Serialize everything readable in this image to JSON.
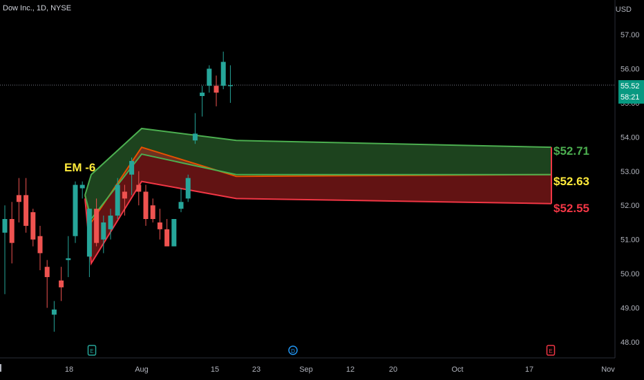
{
  "header": {
    "symbol": "Dow Inc., 1D, NYSE",
    "currency": "USD"
  },
  "last_price": {
    "price": "55.52",
    "countdown": "58:21",
    "color": "#089981"
  },
  "colors": {
    "up": "#26a69a",
    "down": "#ef5350",
    "upper_band": "#4caf50",
    "lower_band": "#f23645",
    "mid_band": "#e65100",
    "label_mid": "#ffeb3b"
  },
  "chart_data": {
    "type": "candlestick",
    "y_axis": {
      "ticks": [
        "57.00",
        "56.00",
        "55.00",
        "54.00",
        "53.00",
        "52.00",
        "51.00",
        "50.00",
        "49.00",
        "48.00"
      ],
      "range": [
        47.75,
        57.95
      ]
    },
    "x_axis": {
      "ticks": [
        "18",
        "Aug",
        "15",
        "23",
        "Sep",
        "12",
        "20",
        "Oct",
        "17",
        "Nov"
      ]
    },
    "candles": [
      {
        "o": 51.2,
        "h": 52.0,
        "l": 49.4,
        "c": 51.6
      },
      {
        "o": 51.6,
        "h": 52.1,
        "l": 50.3,
        "c": 50.9
      },
      {
        "o": 52.3,
        "h": 52.8,
        "l": 51.5,
        "c": 52.1
      },
      {
        "o": 52.3,
        "h": 52.8,
        "l": 51.2,
        "c": 51.4
      },
      {
        "o": 51.8,
        "h": 51.9,
        "l": 50.8,
        "c": 51.0
      },
      {
        "o": 51.1,
        "h": 51.4,
        "l": 50.1,
        "c": 50.6
      },
      {
        "o": 50.2,
        "h": 50.4,
        "l": 49.0,
        "c": 49.9
      },
      {
        "o": 48.8,
        "h": 49.2,
        "l": 48.3,
        "c": 48.95
      },
      {
        "o": 49.8,
        "h": 50.2,
        "l": 49.2,
        "c": 49.6
      },
      {
        "o": 50.4,
        "h": 51.1,
        "l": 49.9,
        "c": 50.45
      },
      {
        "o": 51.1,
        "h": 52.7,
        "l": 50.9,
        "c": 52.6
      },
      {
        "o": 52.5,
        "h": 52.7,
        "l": 52.2,
        "c": 52.6
      },
      {
        "o": 50.5,
        "h": 51.9,
        "l": 49.9,
        "c": 51.9
      },
      {
        "o": 51.9,
        "h": 52.2,
        "l": 50.8,
        "c": 50.9
      },
      {
        "o": 51.0,
        "h": 51.7,
        "l": 50.6,
        "c": 51.5
      },
      {
        "o": 51.3,
        "h": 51.9,
        "l": 51.0,
        "c": 51.7
      },
      {
        "o": 51.7,
        "h": 52.8,
        "l": 51.6,
        "c": 52.6
      },
      {
        "o": 52.4,
        "h": 52.6,
        "l": 51.7,
        "c": 52.2
      },
      {
        "o": 52.9,
        "h": 53.4,
        "l": 52.3,
        "c": 53.3
      },
      {
        "o": 52.6,
        "h": 53.0,
        "l": 52.0,
        "c": 52.4
      },
      {
        "o": 52.4,
        "h": 52.6,
        "l": 51.4,
        "c": 51.6
      },
      {
        "o": 52.0,
        "h": 52.2,
        "l": 51.5,
        "c": 51.6
      },
      {
        "o": 51.5,
        "h": 51.9,
        "l": 51.0,
        "c": 51.3
      },
      {
        "o": 51.3,
        "h": 51.6,
        "l": 50.8,
        "c": 50.8
      },
      {
        "o": 50.8,
        "h": 51.6,
        "l": 50.8,
        "c": 51.6
      },
      {
        "o": 51.9,
        "h": 52.5,
        "l": 51.8,
        "c": 52.1
      },
      {
        "o": 52.2,
        "h": 52.9,
        "l": 52.1,
        "c": 52.8
      },
      {
        "o": 53.9,
        "h": 54.7,
        "l": 53.8,
        "c": 54.1
      },
      {
        "o": 55.2,
        "h": 55.5,
        "l": 54.6,
        "c": 55.3
      },
      {
        "o": 55.5,
        "h": 56.1,
        "l": 55.3,
        "c": 56.0
      },
      {
        "o": 55.5,
        "h": 55.8,
        "l": 54.9,
        "c": 55.3
      },
      {
        "o": 55.5,
        "h": 56.5,
        "l": 55.4,
        "c": 56.2
      },
      {
        "o": 55.52,
        "h": 56.1,
        "l": 55.0,
        "c": 55.52
      }
    ],
    "bands": {
      "upper": {
        "start": 52.3,
        "first": 52.9,
        "peak": 54.25,
        "flat": 53.9,
        "end": 53.7
      },
      "mid_upper": {
        "start": 52.3,
        "first": 51.6,
        "peak": 53.5,
        "flat": 52.9,
        "end": 52.9
      },
      "mid_lower": {
        "start": 52.3,
        "first": 51.5,
        "peak": 53.7,
        "flat": 52.85,
        "end": 52.9
      },
      "lower": {
        "start": 52.2,
        "first": 50.3,
        "peak": 52.7,
        "flat": 52.2,
        "end": 52.05
      }
    },
    "labels": {
      "em": "EM -6",
      "upper": "$52.71",
      "mid": "$52.63",
      "lower": "$52.55"
    },
    "event_markers": [
      {
        "letter": "E",
        "color": "#2962ff",
        "tick": "18"
      },
      {
        "letter": "D",
        "color": "#2962ff",
        "tick": "Sep"
      },
      {
        "letter": "E",
        "color": "#f23645",
        "tick": "17"
      }
    ]
  }
}
